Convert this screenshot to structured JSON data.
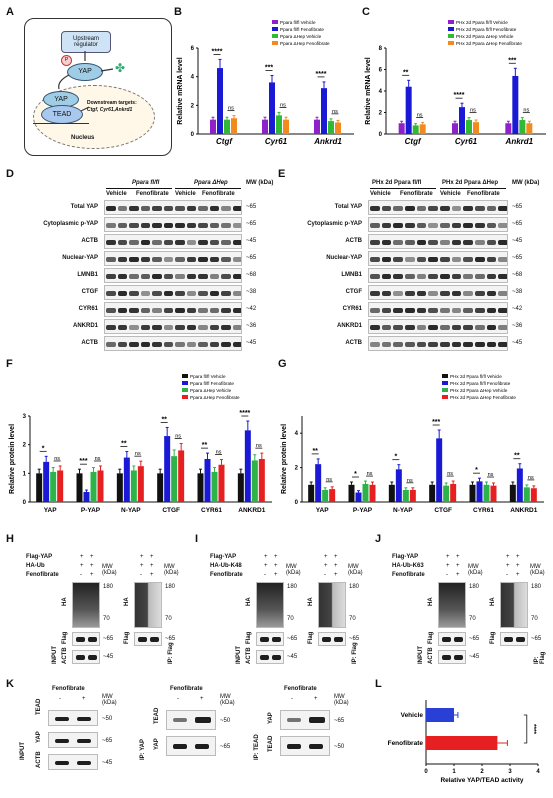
{
  "panels": {
    "A": "A",
    "B": "B",
    "C": "C",
    "D": "D",
    "E": "E",
    "F": "F",
    "G": "G",
    "H": "H",
    "I": "I",
    "J": "J",
    "K": "K",
    "L": "L"
  },
  "panelA": {
    "upstream": "Upstream regulator",
    "p": "P",
    "yap1": "YAP",
    "yap2": "YAP",
    "tead": "TEAD",
    "targets_line1": "Downstream targets:",
    "targets_line2": "Ctgf, Cyr61,Ankrd1",
    "nucleus": "Nucleus"
  },
  "chart_data": [
    {
      "panel": "B",
      "type": "bar",
      "ylabel": "Relative mRNA level",
      "ylim": [
        0,
        6
      ],
      "categories": [
        "Ctgf",
        "Cyr61",
        "Ankrd1"
      ],
      "series": [
        {
          "name": "Ppara fl/fl Vehicle",
          "values": [
            1.0,
            1.0,
            1.0
          ]
        },
        {
          "name": "Ppara fl/fl Fenofibrate",
          "values": [
            4.6,
            3.6,
            3.2
          ]
        },
        {
          "name": "Ppara ΔHep Vehicle",
          "values": [
            1.0,
            1.3,
            0.9
          ]
        },
        {
          "name": "Ppara ΔHep Fenofibrate",
          "values": [
            1.1,
            1.0,
            0.8
          ]
        }
      ],
      "sig": [
        [
          "****",
          "ns"
        ],
        [
          "***",
          "ns"
        ],
        [
          "****",
          "ns"
        ]
      ]
    },
    {
      "panel": "C",
      "type": "bar",
      "ylabel": "Relative mRNA level",
      "ylim": [
        0,
        8
      ],
      "categories": [
        "Ctgf",
        "Cyr61",
        "Ankrd1"
      ],
      "series": [
        {
          "name": "PHx 2d Ppara fl/fl Vehicle",
          "values": [
            1.0,
            1.0,
            1.0
          ]
        },
        {
          "name": "PHx 2d Ppara fl/fl Fenofibrate",
          "values": [
            4.4,
            2.5,
            5.4
          ]
        },
        {
          "name": "PHx 2d Ppara ΔHep Vehicle",
          "values": [
            0.8,
            1.3,
            1.3
          ]
        },
        {
          "name": "PHx 2d Ppara ΔHep Fenofibrate",
          "values": [
            0.9,
            1.1,
            1.0
          ]
        }
      ],
      "sig": [
        [
          "**",
          "ns"
        ],
        [
          "****",
          "ns"
        ],
        [
          "***",
          "ns"
        ]
      ]
    },
    {
      "panel": "F",
      "type": "bar",
      "ylabel": "Relative protein level",
      "ylim": [
        0,
        3
      ],
      "categories": [
        "YAP",
        "P-YAP",
        "N-YAP",
        "CTGF",
        "CYR61",
        "ANKRD1"
      ],
      "series": [
        {
          "name": "Ppara fl/fl Vehicle",
          "values": [
            1.0,
            1.0,
            1.0,
            1.0,
            1.0,
            1.0
          ]
        },
        {
          "name": "Ppara fl/fl Fenofibrate",
          "values": [
            1.4,
            0.35,
            1.55,
            2.3,
            1.5,
            2.5
          ]
        },
        {
          "name": "Ppara ΔHep Vehicle",
          "values": [
            1.05,
            1.05,
            1.1,
            1.6,
            1.05,
            1.45
          ]
        },
        {
          "name": "Ppara ΔHep Fenofibrate",
          "values": [
            1.1,
            1.1,
            1.25,
            1.8,
            1.3,
            1.5
          ]
        }
      ],
      "sig": [
        [
          "*",
          "ns"
        ],
        [
          "***",
          "ns"
        ],
        [
          "**",
          "ns"
        ],
        [
          "**",
          "ns"
        ],
        [
          "**",
          "ns"
        ],
        [
          "****",
          "ns"
        ]
      ]
    },
    {
      "panel": "G",
      "type": "bar",
      "ylabel": "Relative protein level",
      "ylim": [
        0,
        5
      ],
      "categories": [
        "YAP",
        "P-YAP",
        "N-YAP",
        "CTGF",
        "CYR61",
        "ANKRD1"
      ],
      "series": [
        {
          "name": "PHx 2d Ppara fl/fl Vehicle",
          "values": [
            1.0,
            1.0,
            1.0,
            1.0,
            1.0,
            1.0
          ]
        },
        {
          "name": "PHx 2d Ppara fl/fl Fenofibrate",
          "values": [
            2.2,
            0.55,
            1.9,
            3.7,
            1.2,
            1.95
          ]
        },
        {
          "name": "PHx 2d Ppara ΔHep Vehicle",
          "values": [
            0.7,
            1.05,
            0.7,
            0.95,
            1.0,
            0.85
          ]
        },
        {
          "name": "PHx 2d Ppara ΔHep Fenofibrate",
          "values": [
            0.75,
            1.0,
            0.7,
            1.05,
            0.95,
            0.8
          ]
        }
      ],
      "sig": [
        [
          "**",
          "ns"
        ],
        [
          "*",
          "ns"
        ],
        [
          "*",
          "ns"
        ],
        [
          "***",
          "ns"
        ],
        [
          "*",
          "ns"
        ],
        [
          "**",
          "ns"
        ]
      ]
    },
    {
      "panel": "L",
      "type": "bar",
      "orientation": "horizontal",
      "xlabel": "Relative YAP/TEAD activity",
      "xlim": [
        0,
        4
      ],
      "categories": [
        "Vehicle",
        "Fenofibrate"
      ],
      "values": [
        1.0,
        2.55
      ],
      "sig": "****"
    }
  ],
  "colors": {
    "vehicle_ff": "#8e21c8",
    "feno_ff": "#1a1ad6",
    "vehicle_dhep": "#33b833",
    "feno_dhep": "#f28a1e",
    "black": "#111111",
    "blue": "#1a1ad6",
    "green": "#2eb34a",
    "red": "#e62020",
    "L_vehicle": "#2a3fd6",
    "L_feno": "#e62020"
  },
  "legendB": [
    "Ppara fl/fl Vehicle",
    "Ppara fl/fl Fenofibrate",
    "Ppara ΔHep Vehicle",
    "Ppara ΔHep Fenofibrate"
  ],
  "legendC": [
    "PHx 2d Ppara fl/fl Vehicle",
    "PHx 2d Ppara fl/fl Fenofibrate",
    "PHx 2d Ppara ΔHep Vehicle",
    "PHx 2d Ppara ΔHep Fenofibrate"
  ],
  "legendF": [
    "Ppara fl/fl Vehicle",
    "Ppara fl/fl Fenofibrate",
    "Ppara ΔHep Vehicle",
    "Ppara ΔHep Fenofibrate"
  ],
  "legendG": [
    "PHx 2d Ppara fl/fl Vehicle",
    "PHx 2d Ppara fl/fl Fenofibrate",
    "PHx 2d Ppara ΔHep Vehicle",
    "PHx 2d Ppara ΔHep Fenofibrate"
  ],
  "panelD": {
    "group1": "Ppara fl/fl",
    "group2": "Ppara ΔHep",
    "veh1": "Vehicle",
    "feno1": "Fenofibrate",
    "veh2": "Vehicle",
    "feno2": "Fenofibrate",
    "mwhead": "MW (kDa)",
    "rows": [
      {
        "label": "Total YAP",
        "mw": "~65"
      },
      {
        "label": "Cytoplasmic p-YAP",
        "mw": "~65"
      },
      {
        "label": "ACTB",
        "mw": "~45"
      },
      {
        "label": "Nuclear-YAP",
        "mw": "~65"
      },
      {
        "label": "LMNB1",
        "mw": "~68"
      },
      {
        "label": "CTGF",
        "mw": "~38"
      },
      {
        "label": "CYR61",
        "mw": "~42"
      },
      {
        "label": "ANKRD1",
        "mw": "~36"
      },
      {
        "label": "ACTB",
        "mw": "~45"
      }
    ]
  },
  "panelE": {
    "group1": "PHx 2d Ppara fl/fl",
    "group2": "PHx 2d Ppara ΔHep",
    "veh1": "Vehicle",
    "feno1": "Fenofibrate",
    "veh2": "Vehicle",
    "feno2": "Fenofibrate",
    "mwhead": "MW (kDa)",
    "rows": [
      {
        "label": "Total YAP",
        "mw": "~65"
      },
      {
        "label": "Cytoplasmic p-YAP",
        "mw": "~65"
      },
      {
        "label": "ACTB",
        "mw": "~45"
      },
      {
        "label": "Nuclear-YAP",
        "mw": "~65"
      },
      {
        "label": "LMNB1",
        "mw": "~68"
      },
      {
        "label": "CTGF",
        "mw": "~38"
      },
      {
        "label": "CYR61",
        "mw": "~42"
      },
      {
        "label": "ANKRD1",
        "mw": "~36"
      },
      {
        "label": "ACTB",
        "mw": "~45"
      }
    ]
  },
  "panelH": {
    "row1": "Flag-YAP",
    "row2": "HA-Ub",
    "row3": "Fenofibrate",
    "plus": "+",
    "minus": "-",
    "mw": "MW (kDa)",
    "m180": "180",
    "m70": "70",
    "m65": "~65",
    "m45": "~45",
    "ha": "HA",
    "flag": "Flag",
    "actb": "ACTB",
    "input": "INPUT",
    "ip": "IP: Flag"
  },
  "panelI": {
    "row1": "Flag-YAP",
    "row2": "HA-Ub-K48",
    "row3": "Fenofibrate",
    "plus": "+",
    "minus": "-",
    "mw": "MW (kDa)",
    "m180": "180",
    "m70": "70",
    "m65": "~65",
    "m45": "~45",
    "ha": "HA",
    "flag": "Flag",
    "actb": "ACTB",
    "input": "INPUT",
    "ip": "IP: Flag"
  },
  "panelJ": {
    "row1": "Flag-YAP",
    "row2": "HA-Ub-K63",
    "row3": "Fenofibrate",
    "plus": "+",
    "minus": "-",
    "mw": "MW (kDa)",
    "m180": "180",
    "m70": "70",
    "m65": "~65",
    "m45": "~45",
    "ha": "HA",
    "flag": "Flag",
    "actb": "ACTB",
    "input": "INPUT",
    "ip": "IP: Flag"
  },
  "panelK": {
    "feno": "Fenofibrate",
    "minus": "-",
    "plus": "+",
    "mw": "MW (kDa)",
    "tead": "TEAD",
    "yap": "YAP",
    "actb": "ACTB",
    "m50": "~50",
    "m65": "~65",
    "m45": "~45",
    "input": "INPUT",
    "ipyap": "IP: YAP",
    "iptead": "IP: TEAD"
  }
}
